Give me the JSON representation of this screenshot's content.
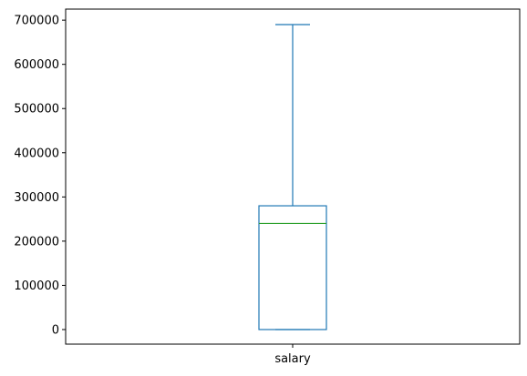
{
  "chart_data": {
    "type": "box",
    "title": "",
    "xlabel": "",
    "ylabel": "",
    "categories": [
      "salary"
    ],
    "box": {
      "category": "salary",
      "whisker_low": 0,
      "q1": 0,
      "median": 240000,
      "q3": 280000,
      "whisker_high": 690000
    },
    "ylim": [
      -33000,
      725000
    ],
    "y_ticks": [
      0,
      100000,
      200000,
      300000,
      400000,
      500000,
      600000,
      700000
    ],
    "y_tick_labels": [
      "0",
      "100000",
      "200000",
      "300000",
      "400000",
      "500000",
      "600000",
      "700000"
    ],
    "grid": false,
    "legend": "none",
    "colors": {
      "box": "#1f77b4",
      "median": "#2ca02c",
      "axes": "#000000"
    }
  }
}
